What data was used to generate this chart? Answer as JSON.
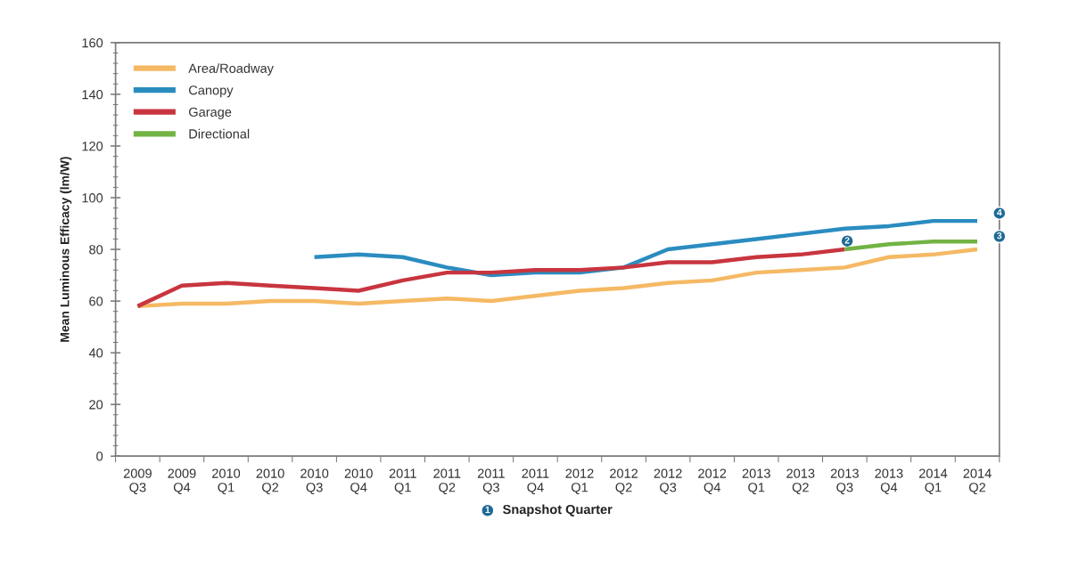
{
  "chart_data": {
    "type": "line",
    "xlabel": "Snapshot Quarter",
    "ylabel": "Mean Luminous Efficacy (lm/W)",
    "categories": [
      "2009\nQ3",
      "2009\nQ4",
      "2010\nQ1",
      "2010\nQ2",
      "2010\nQ3",
      "2010\nQ4",
      "2011\nQ1",
      "2011\nQ2",
      "2011\nQ3",
      "2011\nQ4",
      "2012\nQ1",
      "2012\nQ2",
      "2012\nQ3",
      "2012\nQ4",
      "2013\nQ1",
      "2013\nQ2",
      "2013\nQ3",
      "2013\nQ4",
      "2014\nQ1",
      "2014\nQ2"
    ],
    "series": [
      {
        "name": "Area/Roadway",
        "color": "#f5b964",
        "values": [
          58,
          59,
          59,
          60,
          60,
          59,
          60,
          61,
          60,
          62,
          64,
          65,
          67,
          68,
          71,
          72,
          73,
          77,
          78,
          80
        ]
      },
      {
        "name": "Canopy",
        "color": "#2b8cc0",
        "values": [
          null,
          null,
          null,
          null,
          77,
          78,
          77,
          73,
          70,
          71,
          71,
          73,
          80,
          82,
          84,
          86,
          88,
          89,
          91,
          91
        ]
      },
      {
        "name": "Garage",
        "color": "#c8353f",
        "values": [
          58,
          66,
          67,
          66,
          65,
          64,
          68,
          71,
          71,
          72,
          72,
          73,
          75,
          75,
          77,
          78,
          80,
          null,
          null,
          null
        ]
      },
      {
        "name": "Directional",
        "color": "#72b344",
        "values": [
          null,
          null,
          null,
          null,
          null,
          null,
          null,
          null,
          null,
          null,
          null,
          null,
          null,
          null,
          null,
          null,
          80,
          82,
          83,
          83
        ]
      }
    ],
    "ylim": [
      0,
      160
    ],
    "yticks": [
      0,
      {
        "value": 4,
        "label": null
      },
      {
        "value": 8,
        "label": null
      },
      {
        "value": 12,
        "label": null
      },
      {
        "value": 16,
        "label": null
      },
      20,
      {
        "value": 24,
        "label": null
      },
      {
        "value": 28,
        "label": null
      },
      {
        "value": 32,
        "label": null
      },
      {
        "value": 36,
        "label": null
      },
      40,
      {
        "value": 44,
        "label": null
      },
      {
        "value": 48,
        "label": null
      },
      {
        "value": 52,
        "label": null
      },
      {
        "value": 56,
        "label": null
      },
      60,
      {
        "value": 64,
        "label": null
      },
      {
        "value": 68,
        "label": null
      },
      {
        "value": 72,
        "label": null
      },
      {
        "value": 76,
        "label": null
      },
      80,
      {
        "value": 84,
        "label": null
      },
      {
        "value": 88,
        "label": null
      },
      {
        "value": 92,
        "label": null
      },
      {
        "value": 96,
        "label": null
      },
      100,
      {
        "value": 104,
        "label": null
      },
      {
        "value": 108,
        "label": null
      },
      {
        "value": 112,
        "label": null
      },
      {
        "value": 116,
        "label": null
      },
      120,
      {
        "value": 124,
        "label": null
      },
      {
        "value": 128,
        "label": null
      },
      {
        "value": 132,
        "label": null
      },
      {
        "value": 136,
        "label": null
      },
      140,
      {
        "value": 144,
        "label": null
      },
      {
        "value": 148,
        "label": null
      },
      {
        "value": 152,
        "label": null
      },
      {
        "value": 156,
        "label": null
      },
      160
    ],
    "annotations": [
      "1",
      {
        "text": "2",
        "x": "2013\nQ3",
        "y": 88
      },
      {
        "text": "4",
        "y": 94
      },
      {
        "text": "3",
        "y": 85
      }
    ],
    "grid": false,
    "legend": "top left",
    "marker": "none",
    "line_style": "solid"
  }
}
